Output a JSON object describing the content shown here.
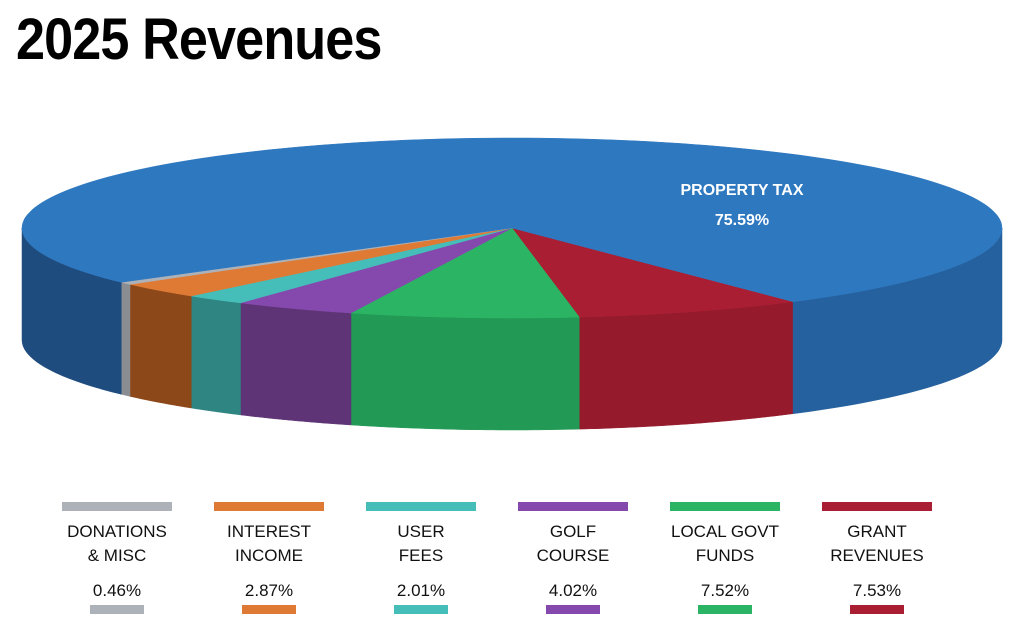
{
  "chart_data": {
    "type": "pie",
    "style": "3d",
    "title": "2025 Revenues",
    "slices": [
      {
        "label": "PROPERTY TAX",
        "value": 75.59,
        "display": "75.59%",
        "color": "#2e78c0",
        "side_color": "#25619e"
      },
      {
        "label": "DONATIONS & MISC",
        "line1": "DONATIONS",
        "line2": "& MISC",
        "value": 0.46,
        "display": "0.46%",
        "color": "#adb1b8",
        "side_color": "#8a8d92"
      },
      {
        "label": "INTEREST INCOME",
        "line1": "INTEREST",
        "line2": "INCOME",
        "value": 2.87,
        "display": "2.87%",
        "color": "#df7a35",
        "side_color": "#8c4818"
      },
      {
        "label": "USER FEES",
        "line1": "USER",
        "line2": "FEES",
        "value": 2.01,
        "display": "2.01%",
        "color": "#45bdb9",
        "side_color": "#2f8582"
      },
      {
        "label": "GOLF COURSE",
        "line1": "GOLF",
        "line2": "COURSE",
        "value": 4.02,
        "display": "4.02%",
        "color": "#8548ad",
        "side_color": "#5e3476"
      },
      {
        "label": "LOCAL GOVT FUNDS",
        "line1": "LOCAL GOVT",
        "line2": "FUNDS",
        "value": 7.52,
        "display": "7.52%",
        "color": "#2bb463",
        "side_color": "#229a55"
      },
      {
        "label": "GRANT REVENUES",
        "line1": "GRANT",
        "line2": "REVENUES",
        "value": 7.53,
        "display": "7.53%",
        "color": "#a91e32",
        "side_color": "#951a2c"
      }
    ],
    "legend_placement": "bottom"
  }
}
